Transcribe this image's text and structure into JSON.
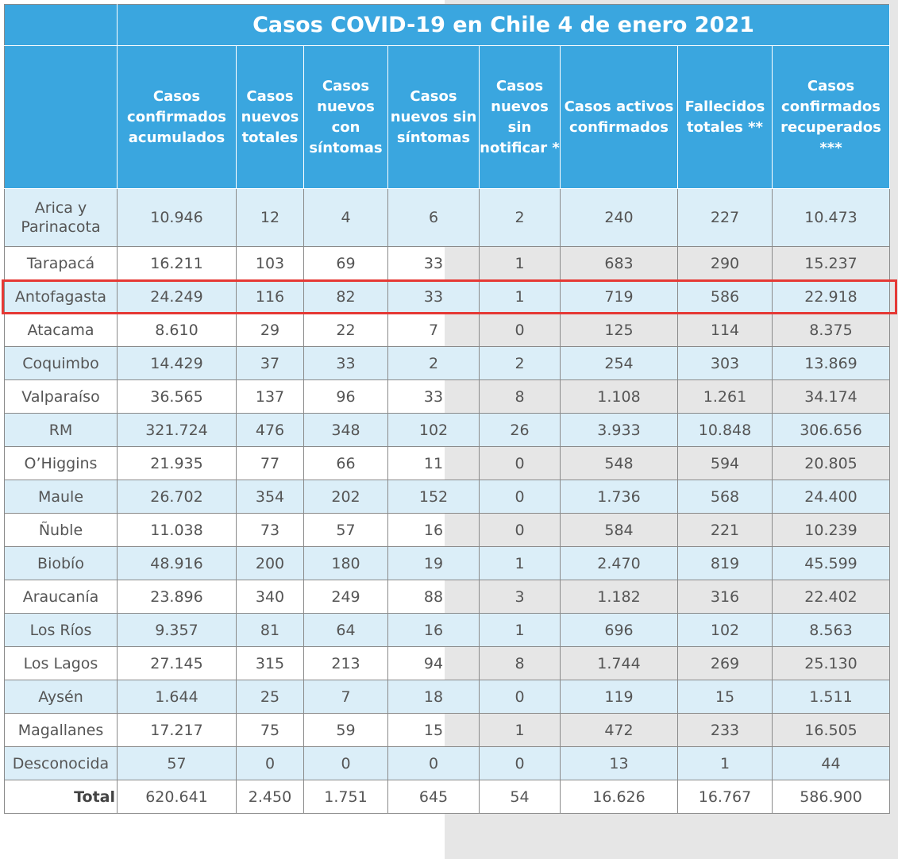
{
  "title": "Casos COVID-19 en Chile 4 de enero 2021",
  "headers": [
    "Casos confirmados acumulados",
    "Casos nuevos totales",
    "Casos nuevos con síntomas",
    "Casos nuevos sin síntomas",
    "Casos nuevos sin notificar *",
    "Casos activos confirmados",
    "Fallecidos totales **",
    "Casos confirmados recuperados ***"
  ],
  "rows": [
    [
      "Arica y Parinacota",
      "10.946",
      "12",
      "4",
      "6",
      "2",
      "240",
      "227",
      "10.473"
    ],
    [
      "Tarapacá",
      "16.211",
      "103",
      "69",
      "33",
      "1",
      "683",
      "290",
      "15.237"
    ],
    [
      "Antofagasta",
      "24.249",
      "116",
      "82",
      "33",
      "1",
      "719",
      "586",
      "22.918"
    ],
    [
      "Atacama",
      "8.610",
      "29",
      "22",
      "7",
      "0",
      "125",
      "114",
      "8.375"
    ],
    [
      "Coquimbo",
      "14.429",
      "37",
      "33",
      "2",
      "2",
      "254",
      "303",
      "13.869"
    ],
    [
      "Valparaíso",
      "36.565",
      "137",
      "96",
      "33",
      "8",
      "1.108",
      "1.261",
      "34.174"
    ],
    [
      "RM",
      "321.724",
      "476",
      "348",
      "102",
      "26",
      "3.933",
      "10.848",
      "306.656"
    ],
    [
      "O’Higgins",
      "21.935",
      "77",
      "66",
      "11",
      "0",
      "548",
      "594",
      "20.805"
    ],
    [
      "Maule",
      "26.702",
      "354",
      "202",
      "152",
      "0",
      "1.736",
      "568",
      "24.400"
    ],
    [
      "Ñuble",
      "11.038",
      "73",
      "57",
      "16",
      "0",
      "584",
      "221",
      "10.239"
    ],
    [
      "Biobío",
      "48.916",
      "200",
      "180",
      "19",
      "1",
      "2.470",
      "819",
      "45.599"
    ],
    [
      "Araucanía",
      "23.896",
      "340",
      "249",
      "88",
      "3",
      "1.182",
      "316",
      "22.402"
    ],
    [
      "Los Ríos",
      "9.357",
      "81",
      "64",
      "16",
      "1",
      "696",
      "102",
      "8.563"
    ],
    [
      "Los Lagos",
      "27.145",
      "315",
      "213",
      "94",
      "8",
      "1.744",
      "269",
      "25.130"
    ],
    [
      "Aysén",
      "1.644",
      "25",
      "7",
      "18",
      "0",
      "119",
      "15",
      "1.511"
    ],
    [
      "Magallanes",
      "17.217",
      "75",
      "59",
      "15",
      "1",
      "472",
      "233",
      "16.505"
    ],
    [
      "Desconocida",
      "57",
      "0",
      "0",
      "0",
      "0",
      "13",
      "1",
      "44"
    ]
  ],
  "total": [
    "Total",
    "620.641",
    "2.450",
    "1.751",
    "645",
    "54",
    "16.626",
    "16.767",
    "586.900"
  ]
}
